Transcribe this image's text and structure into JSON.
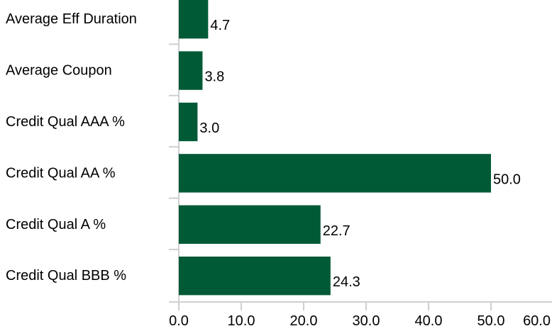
{
  "chart_data": {
    "type": "bar",
    "orientation": "horizontal",
    "categories": [
      "Average Eff Duration",
      "Average Coupon",
      "Credit Qual AAA %",
      "Credit Qual AA %",
      "Credit Qual A %",
      "Credit Qual BBB %"
    ],
    "values": [
      4.7,
      3.8,
      3.0,
      50.0,
      22.7,
      24.3
    ],
    "value_labels": [
      "4.7",
      "3.8",
      "3.0",
      "50.0",
      "22.7",
      "24.3"
    ],
    "xlim": [
      0,
      60
    ],
    "x_ticks": [
      0,
      10,
      20,
      30,
      40,
      50,
      60
    ],
    "x_tick_labels": [
      "0.0",
      "10.0",
      "20.0",
      "30.0",
      "40.0",
      "50.0",
      "60.0"
    ],
    "bar_color": "#005a36",
    "grid": false,
    "title": "",
    "xlabel": "",
    "ylabel": ""
  }
}
